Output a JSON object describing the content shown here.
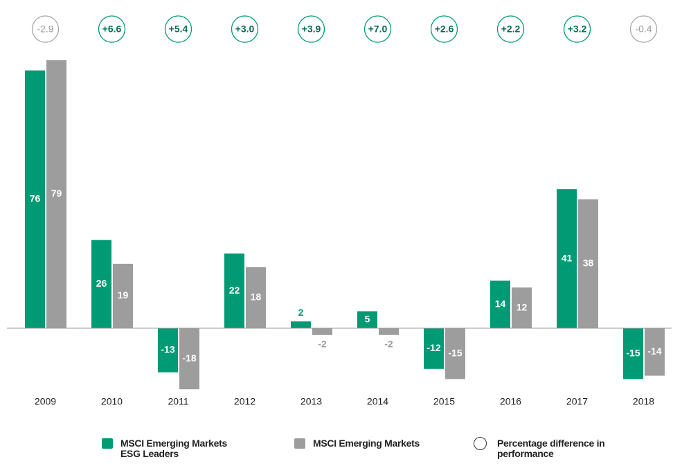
{
  "chart_data": {
    "type": "bar",
    "categories": [
      "2009",
      "2010",
      "2011",
      "2012",
      "2013",
      "2014",
      "2015",
      "2016",
      "2017",
      "2018"
    ],
    "series": [
      {
        "name": "MSCI Emerging Markets ESG Leaders",
        "color": "#009a74",
        "values": [
          76,
          26,
          -13,
          22,
          2,
          5,
          -12,
          14,
          41,
          -15
        ]
      },
      {
        "name": "MSCI Emerging Markets",
        "color": "#9d9d9d",
        "values": [
          79,
          19,
          -18,
          18,
          -2,
          -2,
          -15,
          12,
          38,
          -14
        ]
      }
    ],
    "differences": {
      "name": "Percentage difference in performance",
      "values": [
        -2.9,
        6.6,
        5.4,
        3.0,
        3.9,
        7.0,
        2.6,
        2.2,
        3.2,
        -0.4
      ],
      "value_labels": [
        "-2.9",
        "+6.6",
        "+5.4",
        "+3.0",
        "+3.9",
        "+7.0",
        "+2.6",
        "+2.2",
        "+3.2",
        "-0.4"
      ],
      "positive_color": "#009a74",
      "negative_color": "#a6a6a6"
    }
  }
}
